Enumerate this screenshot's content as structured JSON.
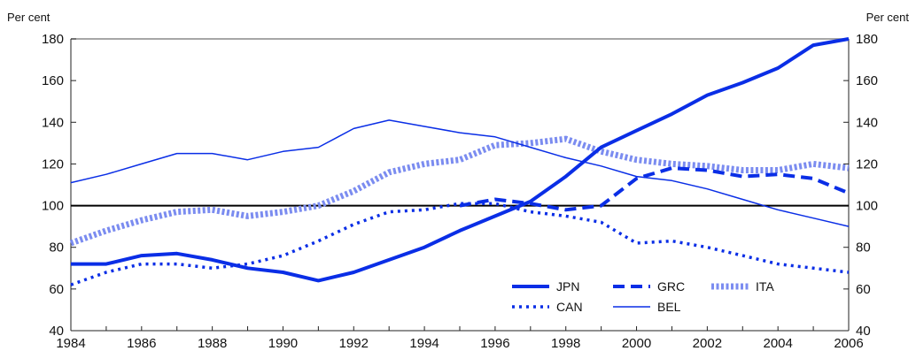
{
  "chart_data": {
    "type": "line",
    "title": "",
    "xlabel": "",
    "ylabel": "Per cent",
    "ylabel_right": "Per cent",
    "xlim": [
      1984,
      2006
    ],
    "ylim": [
      40,
      180
    ],
    "x_ticks": [
      "1984",
      "1986",
      "1988",
      "1990",
      "1992",
      "1994",
      "1996",
      "1998",
      "2000",
      "2002",
      "2004",
      "2006"
    ],
    "y_ticks": [
      "40",
      "60",
      "80",
      "100",
      "120",
      "140",
      "160",
      "180"
    ],
    "reference_line": 100,
    "grid": false,
    "legend_position": "bottom-right",
    "x": [
      1984,
      1985,
      1986,
      1987,
      1988,
      1989,
      1990,
      1991,
      1992,
      1993,
      1994,
      1995,
      1996,
      1997,
      1998,
      1999,
      2000,
      2001,
      2002,
      2003,
      2004,
      2005,
      2006
    ],
    "series": [
      {
        "name": "JPN",
        "color": "#0a2ee6",
        "style": "thick-solid",
        "values": [
          72,
          72,
          76,
          77,
          74,
          70,
          68,
          64,
          68,
          74,
          80,
          88,
          95,
          102,
          114,
          128,
          136,
          144,
          153,
          159,
          166,
          177,
          180
        ]
      },
      {
        "name": "CAN",
        "color": "#0a2ee6",
        "style": "dotted",
        "values": [
          62,
          68,
          72,
          72,
          70,
          72,
          76,
          83,
          91,
          97,
          98,
          101,
          101,
          97,
          95,
          92,
          82,
          83,
          80,
          76,
          72,
          70,
          68
        ]
      },
      {
        "name": "GRC",
        "color": "#0a2ee6",
        "style": "dashed",
        "values": [
          null,
          null,
          null,
          null,
          null,
          null,
          null,
          null,
          null,
          null,
          null,
          100,
          103,
          101,
          98,
          100,
          113,
          118,
          117,
          114,
          115,
          113,
          106
        ]
      },
      {
        "name": "BEL",
        "color": "#0a2ee6",
        "style": "thin-solid",
        "values": [
          111,
          115,
          120,
          125,
          125,
          122,
          126,
          128,
          137,
          141,
          138,
          135,
          133,
          128,
          123,
          119,
          114,
          112,
          108,
          103,
          98,
          94,
          90
        ]
      },
      {
        "name": "ITA",
        "color": "#7b8cf0",
        "style": "thick-dotted",
        "values": [
          82,
          88,
          93,
          97,
          98,
          95,
          97,
          100,
          107,
          116,
          120,
          122,
          129,
          130,
          132,
          126,
          122,
          120,
          119,
          117,
          117,
          120,
          118
        ]
      }
    ]
  }
}
